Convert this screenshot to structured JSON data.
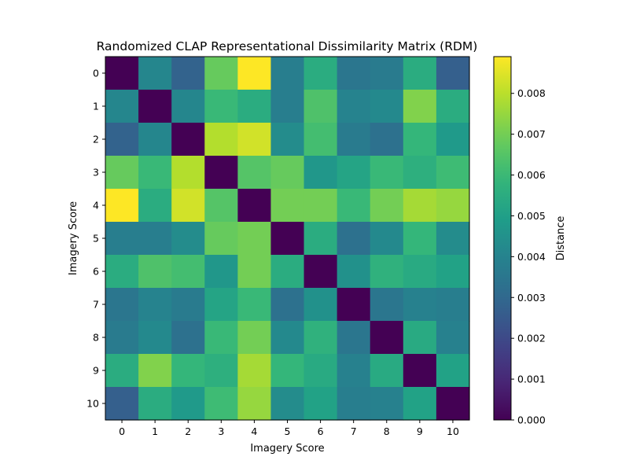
{
  "chart_data": {
    "type": "heatmap",
    "title": "Randomized CLAP Representational Dissimilarity Matrix (RDM)",
    "xlabel": "Imagery Score",
    "ylabel": "Imagery Score",
    "x_categories": [
      "0",
      "1",
      "2",
      "3",
      "4",
      "5",
      "6",
      "7",
      "8",
      "9",
      "10"
    ],
    "y_categories": [
      "0",
      "1",
      "2",
      "3",
      "4",
      "5",
      "6",
      "7",
      "8",
      "9",
      "10"
    ],
    "colorbar": {
      "label": "Distance",
      "colormap": "viridis",
      "range": [
        0,
        0.0089
      ],
      "ticks": [
        "0.000",
        "0.001",
        "0.002",
        "0.003",
        "0.004",
        "0.005",
        "0.006",
        "0.007",
        "0.008"
      ],
      "tick_values": [
        0,
        0.001,
        0.002,
        0.003,
        0.004,
        0.005,
        0.006,
        0.007,
        0.008
      ]
    },
    "matrix": [
      [
        0.0,
        0.0041,
        0.0028,
        0.0068,
        0.0089,
        0.0038,
        0.0055,
        0.0035,
        0.0037,
        0.0055,
        0.0027
      ],
      [
        0.0041,
        0.0,
        0.0041,
        0.006,
        0.0055,
        0.0038,
        0.0064,
        0.004,
        0.0042,
        0.0072,
        0.0055
      ],
      [
        0.0028,
        0.0041,
        0.0,
        0.0079,
        0.0083,
        0.0043,
        0.0062,
        0.0037,
        0.0033,
        0.0059,
        0.0048
      ],
      [
        0.0068,
        0.006,
        0.0079,
        0.0,
        0.0065,
        0.0068,
        0.0047,
        0.0052,
        0.006,
        0.0056,
        0.0061
      ],
      [
        0.0089,
        0.0055,
        0.0083,
        0.0065,
        0.0,
        0.007,
        0.007,
        0.006,
        0.007,
        0.0077,
        0.0075
      ],
      [
        0.0038,
        0.0038,
        0.0043,
        0.0068,
        0.007,
        0.0,
        0.0055,
        0.0033,
        0.0042,
        0.0059,
        0.0043
      ],
      [
        0.0055,
        0.0064,
        0.0062,
        0.0047,
        0.007,
        0.0055,
        0.0,
        0.0045,
        0.0057,
        0.0054,
        0.0051
      ],
      [
        0.0035,
        0.004,
        0.0037,
        0.0052,
        0.006,
        0.0033,
        0.0045,
        0.0,
        0.0035,
        0.0039,
        0.0038
      ],
      [
        0.0037,
        0.0042,
        0.0033,
        0.006,
        0.007,
        0.0042,
        0.0057,
        0.0035,
        0.0,
        0.0054,
        0.0039
      ],
      [
        0.0055,
        0.0072,
        0.0059,
        0.0056,
        0.0077,
        0.0059,
        0.0054,
        0.0039,
        0.0054,
        0.0,
        0.0051
      ],
      [
        0.0027,
        0.0055,
        0.0048,
        0.0061,
        0.0075,
        0.0043,
        0.0051,
        0.0038,
        0.0039,
        0.0051,
        0.0
      ]
    ]
  }
}
